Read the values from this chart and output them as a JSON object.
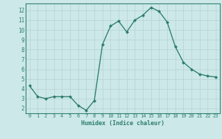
{
  "x": [
    0,
    1,
    2,
    3,
    4,
    5,
    6,
    7,
    8,
    9,
    10,
    11,
    12,
    13,
    14,
    15,
    16,
    17,
    18,
    19,
    20,
    21,
    22,
    23
  ],
  "y": [
    4.3,
    3.2,
    3.0,
    3.2,
    3.2,
    3.2,
    2.3,
    1.8,
    2.8,
    8.5,
    10.4,
    10.9,
    9.8,
    11.0,
    11.5,
    12.3,
    11.9,
    10.8,
    8.3,
    6.7,
    6.0,
    5.5,
    5.3,
    5.2
  ],
  "xlabel": "Humidex (Indice chaleur)",
  "ylim": [
    1.5,
    12.7
  ],
  "xlim": [
    -0.5,
    23.5
  ],
  "yticks": [
    2,
    3,
    4,
    5,
    6,
    7,
    8,
    9,
    10,
    11,
    12
  ],
  "xticks": [
    0,
    1,
    2,
    3,
    4,
    5,
    6,
    7,
    8,
    9,
    10,
    11,
    12,
    13,
    14,
    15,
    16,
    17,
    18,
    19,
    20,
    21,
    22,
    23
  ],
  "line_color": "#2d7d6e",
  "bg_color": "#cce8e8",
  "grid_color": "#b8d4d4",
  "marker_color": "#2d7d6e"
}
